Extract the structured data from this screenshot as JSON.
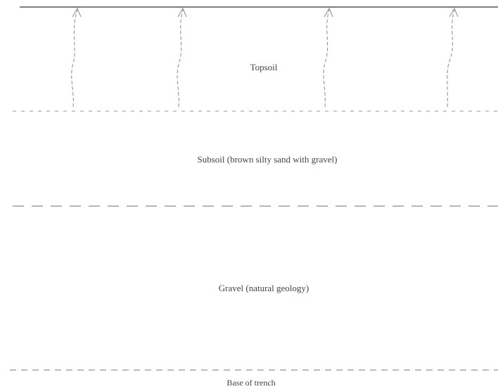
{
  "section": {
    "layers": [
      {
        "id": "topsoil",
        "label": "Topsoil"
      },
      {
        "id": "subsoil",
        "label": "Subsoil (brown silty sand with gravel)"
      },
      {
        "id": "gravel",
        "label": "Gravel (natural geology)"
      }
    ],
    "base_label": "Base of trench"
  },
  "colors": {
    "ground_line": "#555555",
    "boundary_line": "#9a9a9a",
    "root_line": "#8a8a8a",
    "text": "#444444"
  },
  "icons": [
    "root-arrow-icon"
  ]
}
